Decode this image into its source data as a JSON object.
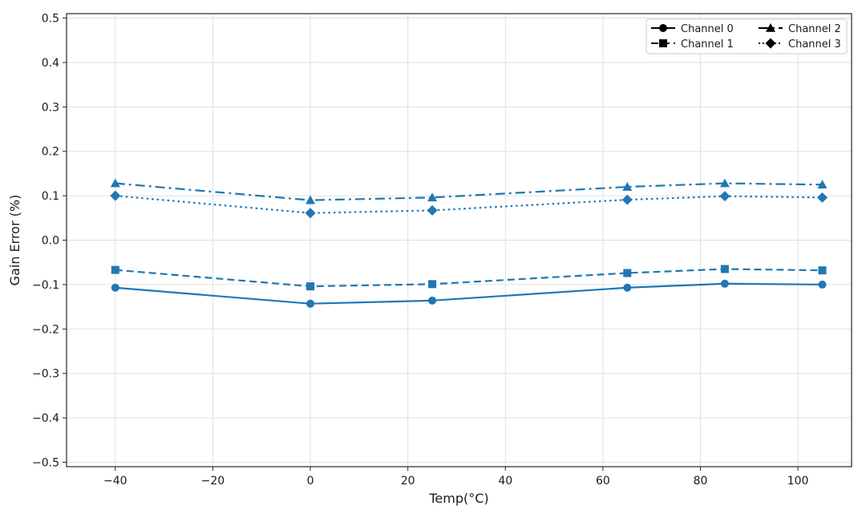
{
  "chart_data": {
    "type": "line",
    "title": "",
    "xlabel": "Temp(°C)",
    "ylabel": "Gain Error (%)",
    "xlim": [
      -50,
      111
    ],
    "ylim": [
      -0.51,
      0.51
    ],
    "xticks": [
      -40,
      -20,
      0,
      20,
      40,
      60,
      80,
      100
    ],
    "xtick_labels": [
      "−40",
      "−20",
      "0",
      "20",
      "40",
      "60",
      "80",
      "100"
    ],
    "yticks": [
      -0.5,
      -0.4,
      -0.3,
      -0.2,
      -0.1,
      0.0,
      0.1,
      0.2,
      0.3,
      0.4,
      0.5
    ],
    "ytick_labels": [
      "−0.5",
      "−0.4",
      "−0.3",
      "−0.2",
      "−0.1",
      "0.0",
      "0.1",
      "0.2",
      "0.3",
      "0.4",
      "0.5"
    ],
    "grid": true,
    "legend_position": "top-right",
    "line_color": "#1f77b4",
    "x": [
      -40,
      0,
      25,
      65,
      85,
      105
    ],
    "series": [
      {
        "name": "Channel 0",
        "marker": "circle",
        "linestyle": "solid",
        "values": [
          -0.107,
          -0.143,
          -0.136,
          -0.107,
          -0.098,
          -0.1
        ]
      },
      {
        "name": "Channel 1",
        "marker": "square",
        "linestyle": "dashed",
        "values": [
          -0.067,
          -0.104,
          -0.099,
          -0.074,
          -0.065,
          -0.068
        ]
      },
      {
        "name": "Channel 2",
        "marker": "triangle",
        "linestyle": "dashdot",
        "values": [
          0.128,
          0.09,
          0.096,
          0.12,
          0.128,
          0.125
        ]
      },
      {
        "name": "Channel 3",
        "marker": "diamond",
        "linestyle": "dotted",
        "values": [
          0.1,
          0.061,
          0.067,
          0.091,
          0.099,
          0.096
        ]
      }
    ]
  }
}
